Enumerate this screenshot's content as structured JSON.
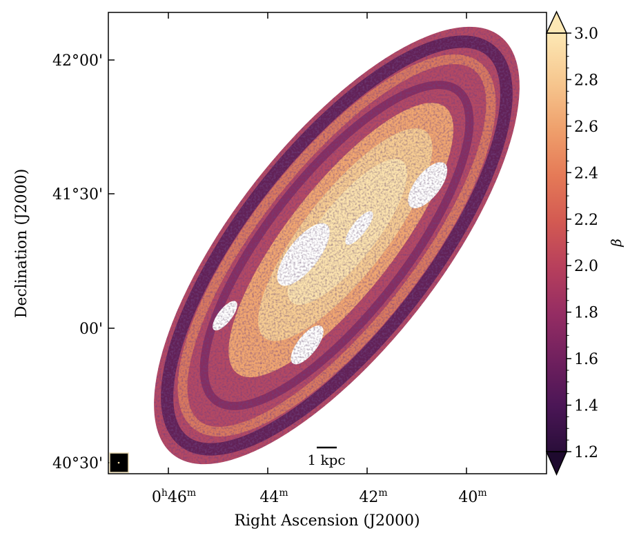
{
  "chart_data": {
    "type": "heatmap",
    "title": "",
    "xlabel": "Right Ascension (J2000)",
    "ylabel": "Declination (J2000)",
    "x_ticks": [
      {
        "main": "0",
        "h": "h",
        "val": "46",
        "unit": "m"
      },
      {
        "main": "",
        "h": "",
        "val": "44",
        "unit": "m"
      },
      {
        "main": "",
        "h": "",
        "val": "42",
        "unit": "m"
      },
      {
        "main": "",
        "h": "",
        "val": "40",
        "unit": "m"
      }
    ],
    "y_ticks": [
      "42°00'",
      "41°30'",
      "00'",
      "40°30'"
    ],
    "colorbar": {
      "label": "β",
      "min": 1.2,
      "max": 3.0,
      "ticks": [
        "1.2",
        "1.4",
        "1.6",
        "1.8",
        "2.0",
        "2.2",
        "2.4",
        "2.6",
        "2.8",
        "3.0"
      ],
      "extend": "both",
      "colormap": [
        "#2a0e3a",
        "#4b1656",
        "#70205e",
        "#952d63",
        "#b73f5c",
        "#d35a52",
        "#e57a57",
        "#efa06c",
        "#f6c68e",
        "#fde8b4"
      ]
    },
    "scalebar_label": "1 kpc",
    "beam": "beam marker"
  }
}
